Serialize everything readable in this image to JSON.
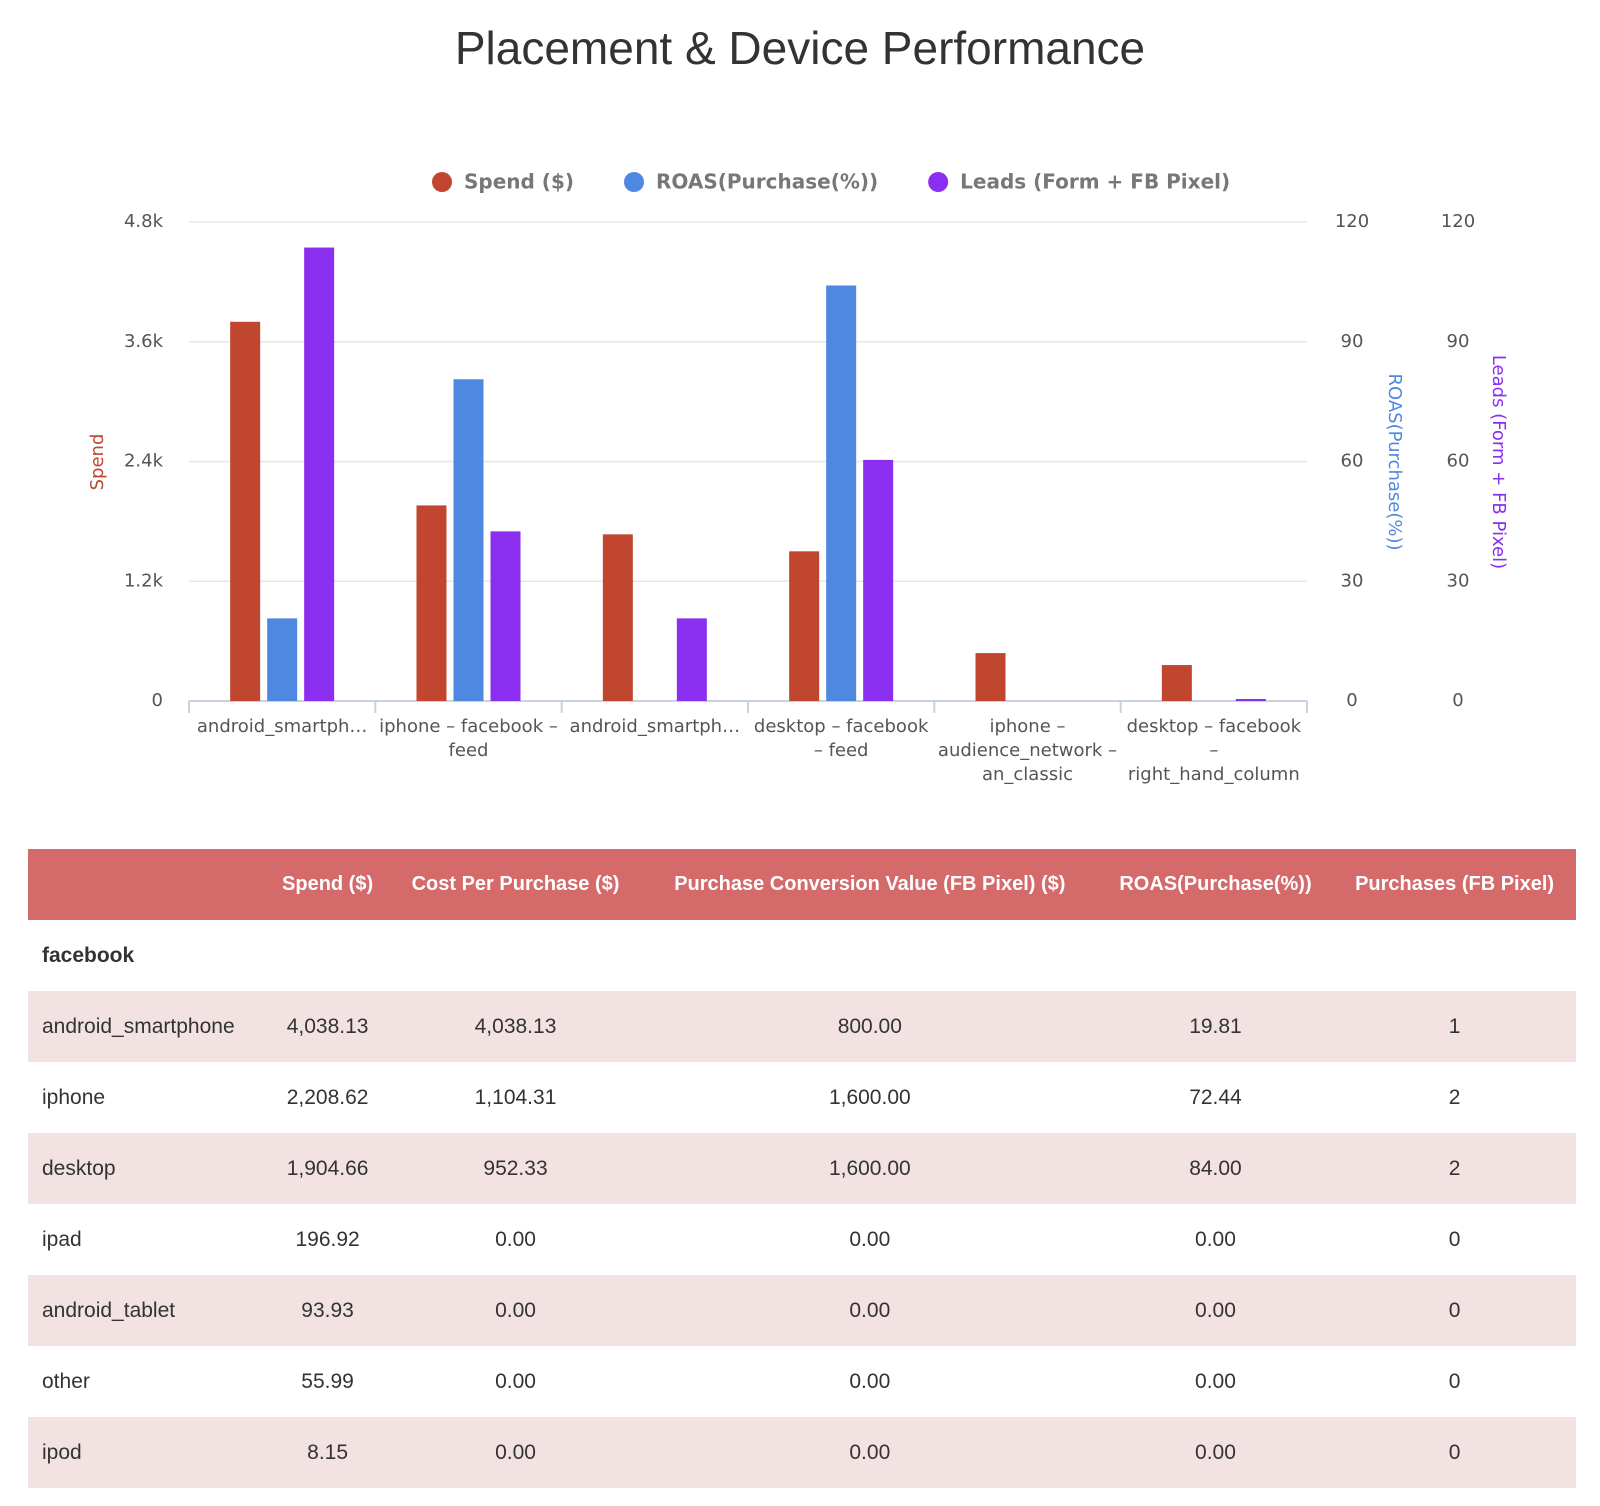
{
  "chart_data": {
    "type": "bar",
    "title": "Placement & Device Performance",
    "categories": [
      "android_smartph…",
      "iphone – facebook – feed",
      "android_smartph…",
      "desktop – facebook – feed",
      "iphone – audience_network – an_classic",
      "desktop – facebook – right_hand_column"
    ],
    "series": [
      {
        "name": "Spend ($)",
        "color": "#c0462f",
        "axis": "y",
        "values": [
          3800,
          1960,
          1670,
          1500,
          480,
          360
        ]
      },
      {
        "name": "ROAS(Purchase(%))",
        "color": "#4f88e0",
        "axis": "y2",
        "values": [
          20.7,
          80.6,
          0,
          104.1,
          0,
          0
        ]
      },
      {
        "name": "Leads (Form + FB Pixel)",
        "color": "#8a2ef0",
        "axis": "y3",
        "values": [
          113.6,
          42.5,
          20.7,
          60.4,
          0,
          0.5
        ]
      }
    ],
    "ylabel": "Spend",
    "y2label": "ROAS(Purchase(%))",
    "y3label": "Leads (Form + FB Pixel)",
    "ylim": [
      0,
      4800
    ],
    "yticks": [
      0,
      {
        "value": 1200,
        "label": "1.2k"
      },
      {
        "value": 2400,
        "label": "2.4k"
      },
      {
        "value": 3600,
        "label": "3.6k"
      },
      {
        "value": 4800,
        "label": "4.8k"
      }
    ],
    "y2lim": [
      0,
      120
    ],
    "y2ticks": [
      0,
      30,
      60,
      90,
      120
    ],
    "y3lim": [
      0,
      120
    ],
    "y3ticks": [
      0,
      30,
      60,
      90,
      120
    ],
    "grid": true,
    "legend": "top"
  },
  "table": {
    "headers": [
      "Spend ($)",
      "Cost Per Purchase ($)",
      "Purchase Conversion Value (FB Pixel) ($)",
      "ROAS(Purchase(%))",
      "Purchases (FB Pixel)"
    ],
    "group": "facebook",
    "rows": [
      [
        "android_smartphone",
        "4,038.13",
        "4,038.13",
        "800.00",
        "19.81",
        "1"
      ],
      [
        "iphone",
        "2,208.62",
        "1,104.31",
        "1,600.00",
        "72.44",
        "2"
      ],
      [
        "desktop",
        "1,904.66",
        "952.33",
        "1,600.00",
        "84.00",
        "2"
      ],
      [
        "ipad",
        "196.92",
        "0.00",
        "0.00",
        "0.00",
        "0"
      ],
      [
        "android_tablet",
        "93.93",
        "0.00",
        "0.00",
        "0.00",
        "0"
      ],
      [
        "other",
        "55.99",
        "0.00",
        "0.00",
        "0.00",
        "0"
      ],
      [
        "ipod",
        "8.15",
        "0.00",
        "0.00",
        "0.00",
        "0"
      ]
    ]
  }
}
